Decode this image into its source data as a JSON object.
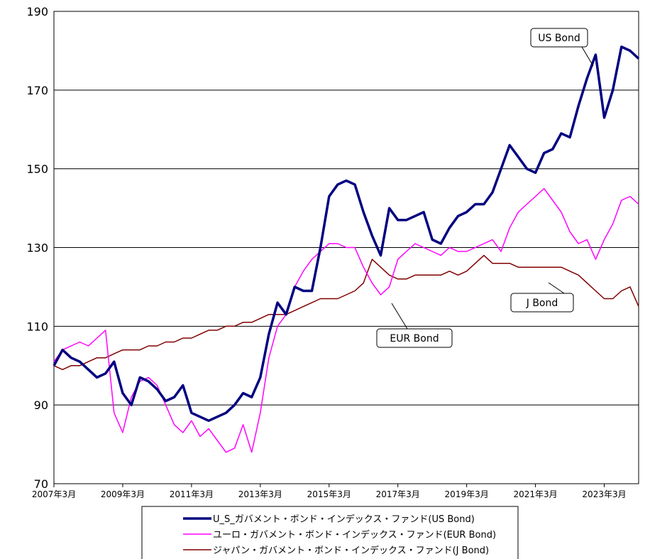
{
  "chart_data": {
    "type": "line",
    "title": "",
    "xlabel": "",
    "ylabel": "",
    "ylim": [
      70,
      190
    ],
    "yticks": [
      70,
      90,
      110,
      130,
      150,
      170,
      190
    ],
    "xlim": [
      "2007-03",
      "2024-03"
    ],
    "xticks": [
      "2007年3月",
      "2009年3月",
      "2011年3月",
      "2013年3月",
      "2015年3月",
      "2017年3月",
      "2019年3月",
      "2021年3月",
      "2023年3月"
    ],
    "grid": "horizontal",
    "legend_position": "bottom",
    "series": [
      {
        "name": "U_S_ガバメント・ボンド・インデックス・ファンド(US Bond)",
        "callout": "US Bond",
        "color": "#000080",
        "points": [
          [
            "2007-03",
            100
          ],
          [
            "2007-06",
            104
          ],
          [
            "2007-09",
            102
          ],
          [
            "2007-12",
            101
          ],
          [
            "2008-03",
            99
          ],
          [
            "2008-06",
            97
          ],
          [
            "2008-09",
            98
          ],
          [
            "2008-12",
            101
          ],
          [
            "2009-03",
            93
          ],
          [
            "2009-06",
            90
          ],
          [
            "2009-09",
            97
          ],
          [
            "2009-12",
            96
          ],
          [
            "2010-03",
            94
          ],
          [
            "2010-06",
            91
          ],
          [
            "2010-09",
            92
          ],
          [
            "2010-12",
            95
          ],
          [
            "2011-03",
            88
          ],
          [
            "2011-06",
            87
          ],
          [
            "2011-09",
            86
          ],
          [
            "2011-12",
            87
          ],
          [
            "2012-03",
            88
          ],
          [
            "2012-06",
            90
          ],
          [
            "2012-09",
            93
          ],
          [
            "2012-12",
            92
          ],
          [
            "2013-03",
            97
          ],
          [
            "2013-06",
            108
          ],
          [
            "2013-09",
            116
          ],
          [
            "2013-12",
            113
          ],
          [
            "2014-03",
            120
          ],
          [
            "2014-06",
            119
          ],
          [
            "2014-09",
            119
          ],
          [
            "2014-12",
            130
          ],
          [
            "2015-03",
            143
          ],
          [
            "2015-06",
            146
          ],
          [
            "2015-09",
            147
          ],
          [
            "2015-12",
            146
          ],
          [
            "2016-03",
            139
          ],
          [
            "2016-06",
            133
          ],
          [
            "2016-09",
            128
          ],
          [
            "2016-12",
            140
          ],
          [
            "2017-03",
            137
          ],
          [
            "2017-06",
            137
          ],
          [
            "2017-09",
            138
          ],
          [
            "2017-12",
            139
          ],
          [
            "2018-03",
            132
          ],
          [
            "2018-06",
            131
          ],
          [
            "2018-09",
            135
          ],
          [
            "2018-12",
            138
          ],
          [
            "2019-03",
            139
          ],
          [
            "2019-06",
            141
          ],
          [
            "2019-09",
            141
          ],
          [
            "2019-12",
            144
          ],
          [
            "2020-03",
            150
          ],
          [
            "2020-06",
            156
          ],
          [
            "2020-09",
            153
          ],
          [
            "2020-12",
            150
          ],
          [
            "2021-03",
            149
          ],
          [
            "2021-06",
            154
          ],
          [
            "2021-09",
            155
          ],
          [
            "2021-12",
            159
          ],
          [
            "2022-03",
            158
          ],
          [
            "2022-06",
            166
          ],
          [
            "2022-09",
            173
          ],
          [
            "2022-12",
            179
          ],
          [
            "2023-03",
            163
          ],
          [
            "2023-06",
            170
          ],
          [
            "2023-09",
            181
          ],
          [
            "2023-12",
            180
          ],
          [
            "2024-03",
            178
          ]
        ]
      },
      {
        "name": "ユーロ・ガバメント・ボンド・インデックス・ファンド(EUR Bond)",
        "callout": "EUR Bond",
        "color": "#ff00ff",
        "points": [
          [
            "2007-03",
            101
          ],
          [
            "2007-06",
            104
          ],
          [
            "2007-09",
            105
          ],
          [
            "2007-12",
            106
          ],
          [
            "2008-03",
            105
          ],
          [
            "2008-06",
            107
          ],
          [
            "2008-09",
            109
          ],
          [
            "2008-12",
            88
          ],
          [
            "2009-03",
            83
          ],
          [
            "2009-06",
            92
          ],
          [
            "2009-09",
            96
          ],
          [
            "2009-12",
            97
          ],
          [
            "2010-03",
            95
          ],
          [
            "2010-06",
            90
          ],
          [
            "2010-09",
            85
          ],
          [
            "2010-12",
            83
          ],
          [
            "2011-03",
            86
          ],
          [
            "2011-06",
            82
          ],
          [
            "2011-09",
            84
          ],
          [
            "2011-12",
            81
          ],
          [
            "2012-03",
            78
          ],
          [
            "2012-06",
            79
          ],
          [
            "2012-09",
            85
          ],
          [
            "2012-12",
            78
          ],
          [
            "2013-03",
            88
          ],
          [
            "2013-06",
            102
          ],
          [
            "2013-09",
            110
          ],
          [
            "2013-12",
            113
          ],
          [
            "2014-03",
            120
          ],
          [
            "2014-06",
            124
          ],
          [
            "2014-09",
            127
          ],
          [
            "2014-12",
            129
          ],
          [
            "2015-03",
            131
          ],
          [
            "2015-06",
            131
          ],
          [
            "2015-09",
            130
          ],
          [
            "2015-12",
            130
          ],
          [
            "2016-03",
            125
          ],
          [
            "2016-06",
            121
          ],
          [
            "2016-09",
            118
          ],
          [
            "2016-12",
            120
          ],
          [
            "2017-03",
            127
          ],
          [
            "2017-06",
            129
          ],
          [
            "2017-09",
            131
          ],
          [
            "2017-12",
            130
          ],
          [
            "2018-03",
            129
          ],
          [
            "2018-06",
            128
          ],
          [
            "2018-09",
            130
          ],
          [
            "2018-12",
            129
          ],
          [
            "2019-03",
            129
          ],
          [
            "2019-06",
            130
          ],
          [
            "2019-09",
            131
          ],
          [
            "2019-12",
            132
          ],
          [
            "2020-03",
            129
          ],
          [
            "2020-06",
            135
          ],
          [
            "2020-09",
            139
          ],
          [
            "2020-12",
            141
          ],
          [
            "2021-03",
            143
          ],
          [
            "2021-06",
            145
          ],
          [
            "2021-09",
            142
          ],
          [
            "2021-12",
            139
          ],
          [
            "2022-03",
            134
          ],
          [
            "2022-06",
            131
          ],
          [
            "2022-09",
            132
          ],
          [
            "2022-12",
            127
          ],
          [
            "2023-03",
            132
          ],
          [
            "2023-06",
            136
          ],
          [
            "2023-09",
            142
          ],
          [
            "2023-12",
            143
          ],
          [
            "2024-03",
            141
          ]
        ]
      },
      {
        "name": "ジャパン・ガバメント・ボンド・インデックス・ファンド(J Bond)",
        "callout": "J Bond",
        "color": "#800000",
        "points": [
          [
            "2007-03",
            100
          ],
          [
            "2007-06",
            99
          ],
          [
            "2007-09",
            100
          ],
          [
            "2007-12",
            100
          ],
          [
            "2008-03",
            101
          ],
          [
            "2008-06",
            102
          ],
          [
            "2008-09",
            102
          ],
          [
            "2008-12",
            103
          ],
          [
            "2009-03",
            104
          ],
          [
            "2009-06",
            104
          ],
          [
            "2009-09",
            104
          ],
          [
            "2009-12",
            105
          ],
          [
            "2010-03",
            105
          ],
          [
            "2010-06",
            106
          ],
          [
            "2010-09",
            106
          ],
          [
            "2010-12",
            107
          ],
          [
            "2011-03",
            107
          ],
          [
            "2011-06",
            108
          ],
          [
            "2011-09",
            109
          ],
          [
            "2011-12",
            109
          ],
          [
            "2012-03",
            110
          ],
          [
            "2012-06",
            110
          ],
          [
            "2012-09",
            111
          ],
          [
            "2012-12",
            111
          ],
          [
            "2013-03",
            112
          ],
          [
            "2013-06",
            113
          ],
          [
            "2013-09",
            113
          ],
          [
            "2013-12",
            113
          ],
          [
            "2014-03",
            114
          ],
          [
            "2014-06",
            115
          ],
          [
            "2014-09",
            116
          ],
          [
            "2014-12",
            117
          ],
          [
            "2015-03",
            117
          ],
          [
            "2015-06",
            117
          ],
          [
            "2015-09",
            118
          ],
          [
            "2015-12",
            119
          ],
          [
            "2016-03",
            121
          ],
          [
            "2016-06",
            127
          ],
          [
            "2016-09",
            125
          ],
          [
            "2016-12",
            123
          ],
          [
            "2017-03",
            122
          ],
          [
            "2017-06",
            122
          ],
          [
            "2017-09",
            123
          ],
          [
            "2017-12",
            123
          ],
          [
            "2018-03",
            123
          ],
          [
            "2018-06",
            123
          ],
          [
            "2018-09",
            124
          ],
          [
            "2018-12",
            123
          ],
          [
            "2019-03",
            124
          ],
          [
            "2019-06",
            126
          ],
          [
            "2019-09",
            128
          ],
          [
            "2019-12",
            126
          ],
          [
            "2020-03",
            126
          ],
          [
            "2020-06",
            126
          ],
          [
            "2020-09",
            125
          ],
          [
            "2020-12",
            125
          ],
          [
            "2021-03",
            125
          ],
          [
            "2021-06",
            125
          ],
          [
            "2021-09",
            125
          ],
          [
            "2021-12",
            125
          ],
          [
            "2022-03",
            124
          ],
          [
            "2022-06",
            123
          ],
          [
            "2022-09",
            121
          ],
          [
            "2022-12",
            119
          ],
          [
            "2023-03",
            117
          ],
          [
            "2023-06",
            117
          ],
          [
            "2023-09",
            119
          ],
          [
            "2023-12",
            120
          ],
          [
            "2024-03",
            115
          ]
        ]
      }
    ]
  }
}
